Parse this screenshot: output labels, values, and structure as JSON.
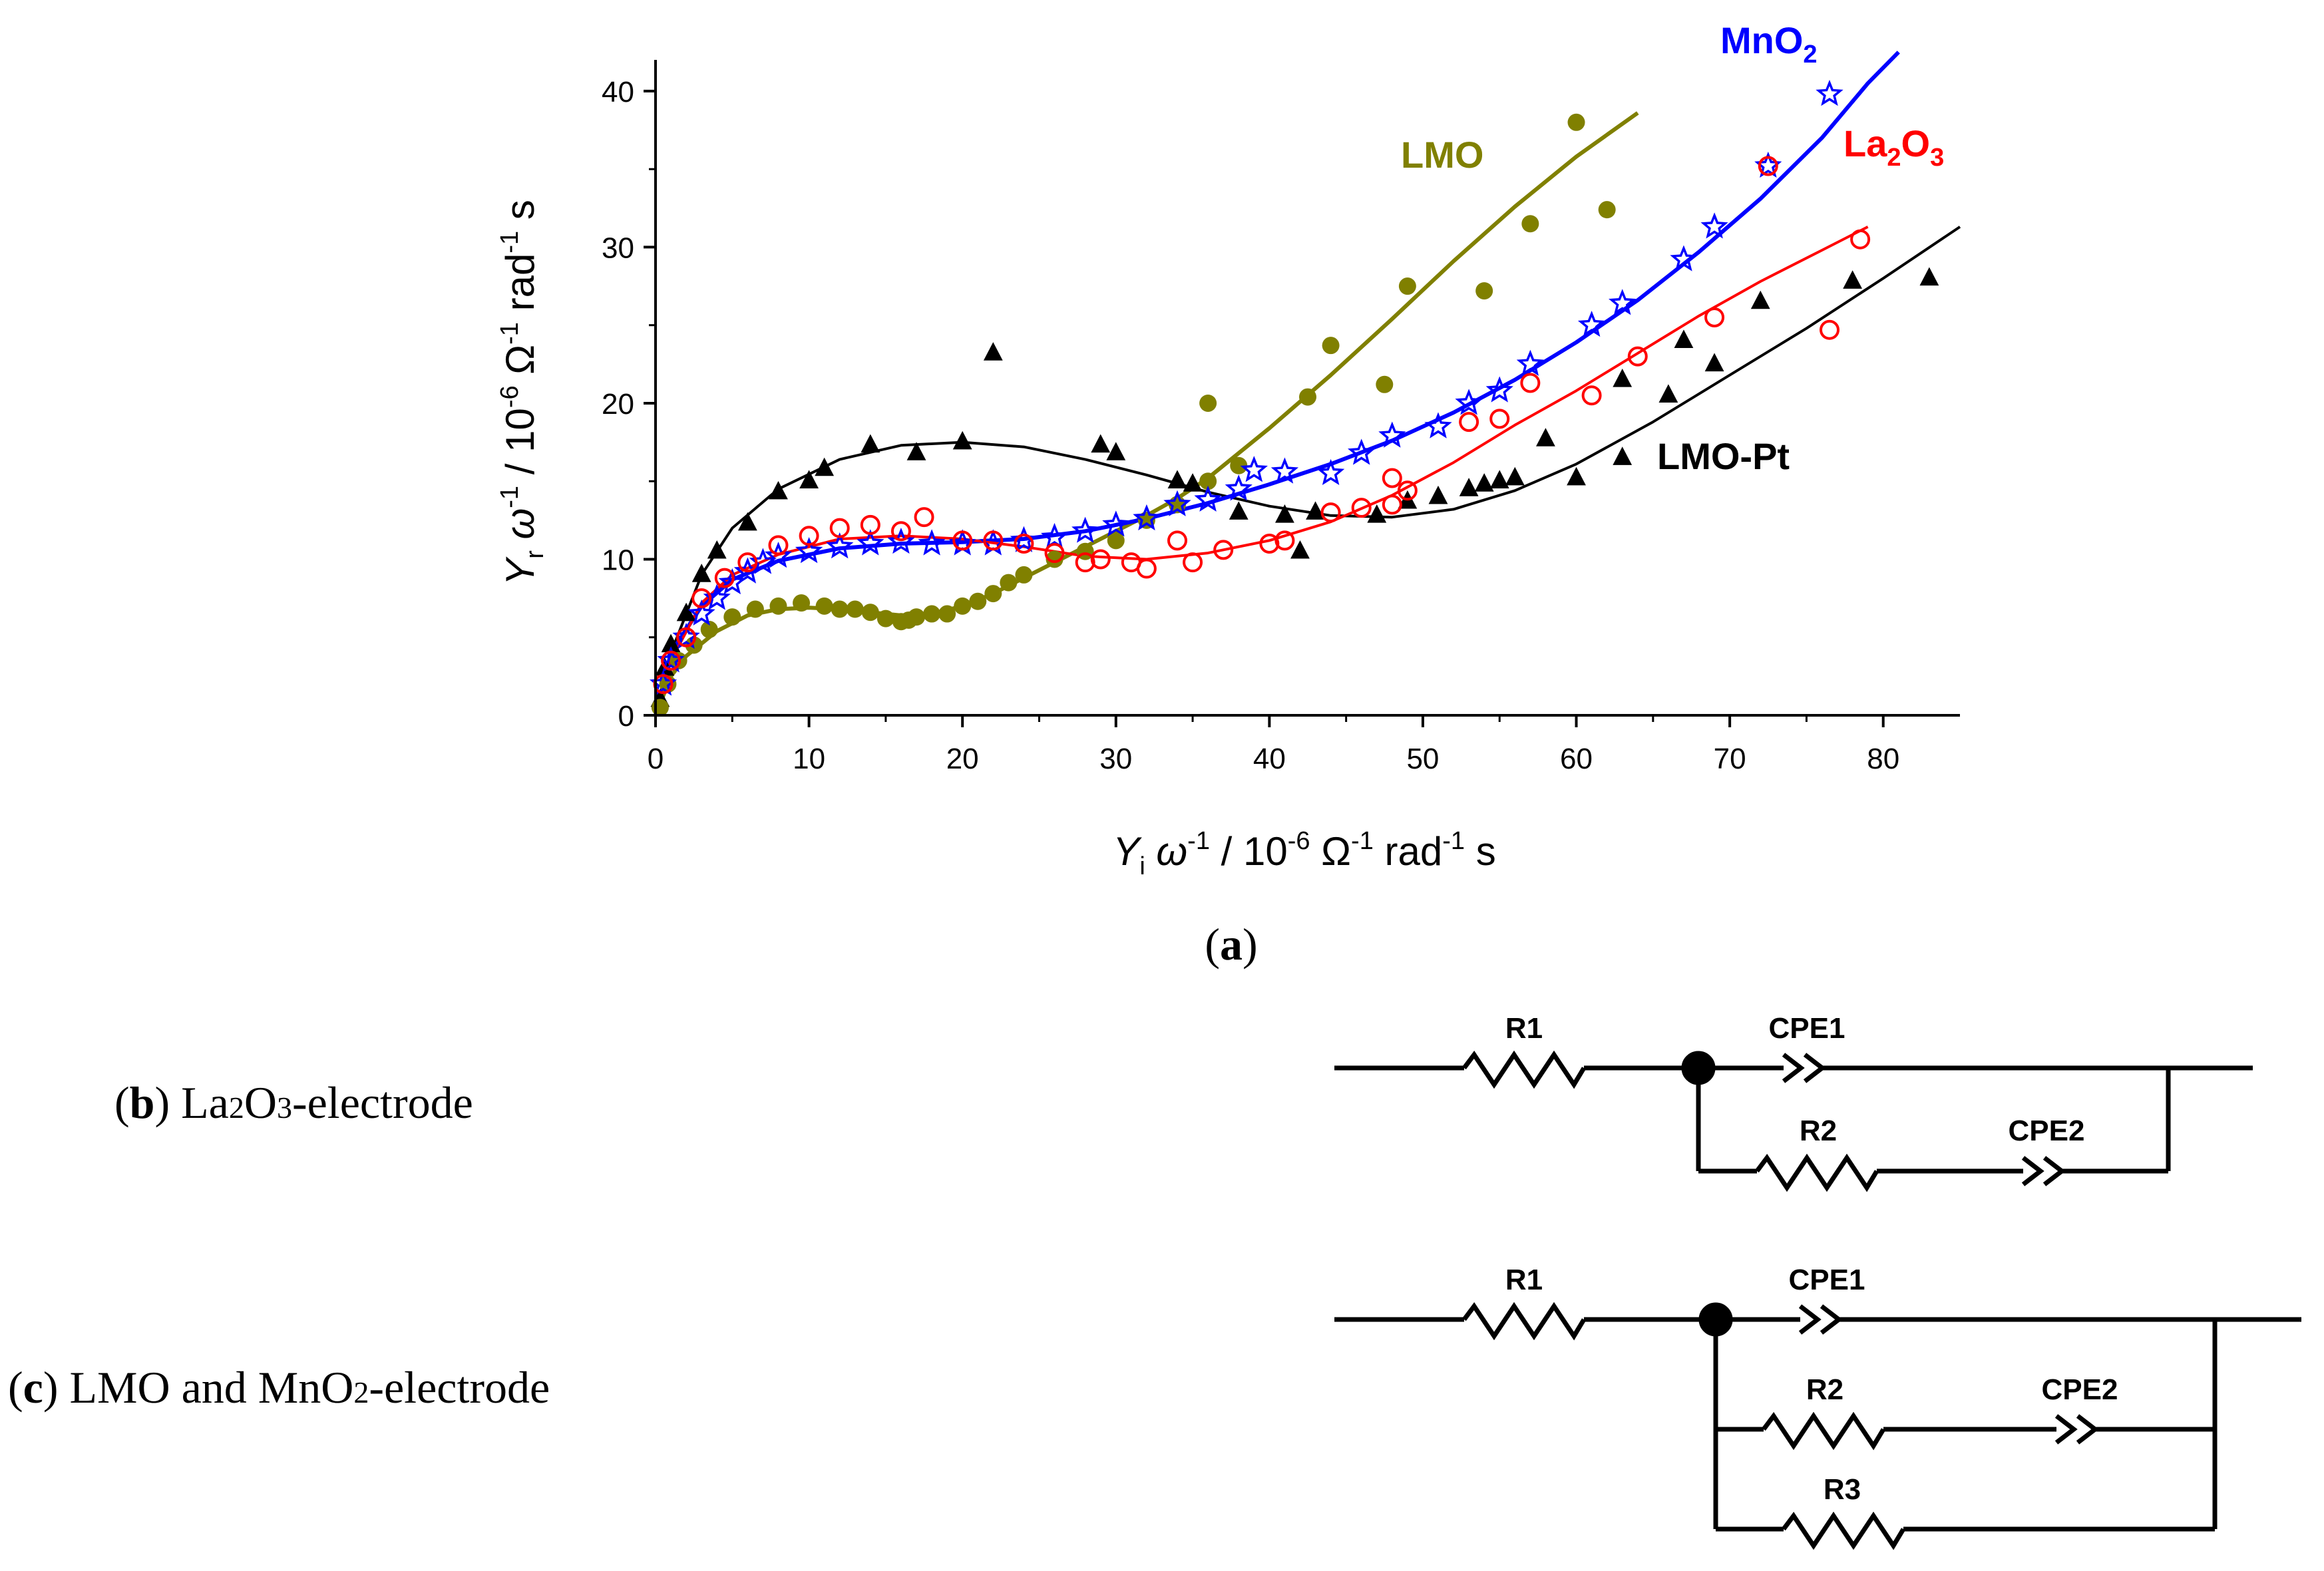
{
  "panel_a": {
    "label": "a"
  },
  "panel_b": {
    "label": "b",
    "text": "La",
    "sub1": "2",
    "text2": "O",
    "sub2": "3",
    "text3": "-electrode"
  },
  "panel_c": {
    "label": "c",
    "text": "LMO and MnO",
    "sub1": "2",
    "text2": "-electrode"
  },
  "circuit_b": {
    "labels": {
      "r1": "R1",
      "cpe1": "CPE1",
      "r2": "R2",
      "cpe2": "CPE2"
    }
  },
  "circuit_c": {
    "labels": {
      "r1": "R1",
      "cpe1": "CPE1",
      "r2": "R2",
      "cpe2": "CPE2",
      "r3": "R3"
    }
  },
  "chart_data": {
    "type": "scatter",
    "title": "",
    "xlabel": {
      "base": "Y",
      "sub": "i",
      "rest1": " ω",
      "sup1": "-1",
      "rest2": " / 10",
      "sup2": "-6",
      "rest3": " Ω",
      "sup3": "-1",
      "rest4": " rad",
      "sup4": "-1",
      "rest5": " s"
    },
    "ylabel": {
      "base": "Y",
      "sub": "r",
      "rest1": " ω",
      "sup1": "-1",
      "rest2": " / 10",
      "sup2": "-6",
      "rest3": " Ω",
      "sup3": "-1",
      "rest4": " rad",
      "sup4": "-1",
      "rest5": " s"
    },
    "xlim": [
      0,
      85
    ],
    "ylim": [
      0,
      42
    ],
    "xticks": [
      0,
      10,
      20,
      30,
      40,
      50,
      60,
      70,
      80
    ],
    "yticks": [
      0,
      10,
      20,
      30,
      40
    ],
    "grid": false,
    "series": [
      {
        "name": "LMO-Pt",
        "label_parts": [
          "LMO-Pt"
        ],
        "color": "#000000",
        "marker": "triangle",
        "points": [
          [
            0.3,
            1
          ],
          [
            0.6,
            3
          ],
          [
            1,
            4.5
          ],
          [
            2,
            6.5
          ],
          [
            3,
            9
          ],
          [
            4,
            10.5
          ],
          [
            6,
            12.3
          ],
          [
            8,
            14.3
          ],
          [
            10,
            15
          ],
          [
            11,
            15.8
          ],
          [
            14,
            17.3
          ],
          [
            17,
            16.8
          ],
          [
            20,
            17.5
          ],
          [
            22,
            23.2
          ],
          [
            29,
            17.3
          ],
          [
            30,
            16.8
          ],
          [
            34,
            15
          ],
          [
            35,
            14.8
          ],
          [
            38,
            13
          ],
          [
            41,
            12.8
          ],
          [
            42,
            10.5
          ],
          [
            43,
            13
          ],
          [
            47,
            12.8
          ],
          [
            49,
            13.7
          ],
          [
            51,
            14
          ],
          [
            53,
            14.5
          ],
          [
            54,
            14.8
          ],
          [
            55,
            15
          ],
          [
            56,
            15.2
          ],
          [
            58,
            17.7
          ],
          [
            60,
            15.2
          ],
          [
            63,
            16.5
          ],
          [
            63,
            21.5
          ],
          [
            66,
            20.5
          ],
          [
            67,
            24
          ],
          [
            69,
            22.5
          ],
          [
            72,
            26.5
          ],
          [
            78,
            27.8
          ],
          [
            83,
            28
          ]
        ],
        "fit": [
          [
            0,
            0
          ],
          [
            1,
            4
          ],
          [
            3,
            9
          ],
          [
            5,
            12
          ],
          [
            8,
            14.5
          ],
          [
            12,
            16.4
          ],
          [
            16,
            17.3
          ],
          [
            20,
            17.5
          ],
          [
            24,
            17.2
          ],
          [
            28,
            16.4
          ],
          [
            32,
            15.4
          ],
          [
            36,
            14.3
          ],
          [
            40,
            13.4
          ],
          [
            44,
            12.8
          ],
          [
            48,
            12.7
          ],
          [
            52,
            13.2
          ],
          [
            56,
            14.4
          ],
          [
            60,
            16.1
          ],
          [
            65,
            18.8
          ],
          [
            70,
            21.8
          ],
          [
            75,
            24.8
          ],
          [
            80,
            28
          ],
          [
            85,
            31.3
          ]
        ]
      },
      {
        "name": "LMO",
        "label_parts": [
          "LMO"
        ],
        "color": "#808000",
        "marker": "circle-filled",
        "points": [
          [
            0.3,
            0.5
          ],
          [
            0.8,
            2
          ],
          [
            1.5,
            3.5
          ],
          [
            2.5,
            4.5
          ],
          [
            3.5,
            5.5
          ],
          [
            5,
            6.3
          ],
          [
            6.5,
            6.8
          ],
          [
            8,
            7
          ],
          [
            9.5,
            7.2
          ],
          [
            11,
            7
          ],
          [
            12,
            6.8
          ],
          [
            13,
            6.8
          ],
          [
            14,
            6.6
          ],
          [
            15,
            6.2
          ],
          [
            16,
            6
          ],
          [
            16.5,
            6.1
          ],
          [
            17,
            6.3
          ],
          [
            18,
            6.5
          ],
          [
            19,
            6.5
          ],
          [
            20,
            7
          ],
          [
            21,
            7.3
          ],
          [
            22,
            7.8
          ],
          [
            23,
            8.5
          ],
          [
            24,
            9
          ],
          [
            26,
            10
          ],
          [
            28,
            10.5
          ],
          [
            30,
            11.2
          ],
          [
            32,
            12.5
          ],
          [
            34,
            13.5
          ],
          [
            36,
            15
          ],
          [
            36,
            20
          ],
          [
            38,
            16
          ],
          [
            42.5,
            20.4
          ],
          [
            44,
            23.7
          ],
          [
            47.5,
            21.2
          ],
          [
            49,
            27.5
          ],
          [
            54,
            27.2
          ],
          [
            57,
            31.5
          ],
          [
            60,
            38
          ],
          [
            62,
            32.4
          ]
        ],
        "fit": [
          [
            0,
            0
          ],
          [
            1,
            2.5
          ],
          [
            2,
            3.8
          ],
          [
            4,
            5.4
          ],
          [
            6,
            6.4
          ],
          [
            8,
            6.8
          ],
          [
            10,
            6.9
          ],
          [
            12,
            6.8
          ],
          [
            14,
            6.6
          ],
          [
            16,
            6.4
          ],
          [
            18,
            6.5
          ],
          [
            20,
            7
          ],
          [
            22,
            7.8
          ],
          [
            24,
            8.8
          ],
          [
            26,
            9.8
          ],
          [
            28,
            10.8
          ],
          [
            30,
            11.8
          ],
          [
            32,
            12.8
          ],
          [
            34,
            13.9
          ],
          [
            36,
            15.2
          ],
          [
            40,
            18.4
          ],
          [
            44,
            21.8
          ],
          [
            48,
            25.4
          ],
          [
            52,
            29.1
          ],
          [
            56,
            32.6
          ],
          [
            60,
            35.8
          ],
          [
            64,
            38.6
          ]
        ]
      },
      {
        "name": "MnO2",
        "label_parts": [
          "MnO",
          "2"
        ],
        "color": "#0000ff",
        "marker": "star-open",
        "points": [
          [
            0.5,
            2
          ],
          [
            1,
            3.5
          ],
          [
            2,
            5
          ],
          [
            3,
            6.5
          ],
          [
            4,
            7.5
          ],
          [
            5,
            8.5
          ],
          [
            6,
            9.2
          ],
          [
            7,
            9.8
          ],
          [
            8,
            10.2
          ],
          [
            10,
            10.5
          ],
          [
            12,
            10.8
          ],
          [
            14,
            11
          ],
          [
            16,
            11.1
          ],
          [
            18,
            11
          ],
          [
            20,
            11
          ],
          [
            22,
            11
          ],
          [
            24,
            11.2
          ],
          [
            26,
            11.4
          ],
          [
            28,
            11.8
          ],
          [
            30,
            12.2
          ],
          [
            32,
            12.6
          ],
          [
            34,
            13.5
          ],
          [
            36,
            13.8
          ],
          [
            38,
            14.5
          ],
          [
            39,
            15.7
          ],
          [
            41,
            15.6
          ],
          [
            44,
            15.5
          ],
          [
            46,
            16.8
          ],
          [
            48,
            17.9
          ],
          [
            51,
            18.5
          ],
          [
            53,
            20
          ],
          [
            55,
            20.8
          ],
          [
            57,
            22.5
          ],
          [
            61,
            25
          ],
          [
            63,
            26.4
          ],
          [
            67,
            29.2
          ],
          [
            69,
            31.3
          ],
          [
            72.5,
            35.2
          ],
          [
            76.5,
            39.8
          ]
        ],
        "fit": [
          [
            0,
            0
          ],
          [
            1,
            4
          ],
          [
            3,
            7
          ],
          [
            5,
            8.7
          ],
          [
            8,
            9.9
          ],
          [
            12,
            10.7
          ],
          [
            16,
            11
          ],
          [
            20,
            11.1
          ],
          [
            24,
            11.3
          ],
          [
            28,
            11.8
          ],
          [
            32,
            12.6
          ],
          [
            36,
            13.6
          ],
          [
            40,
            14.8
          ],
          [
            44,
            16.1
          ],
          [
            48,
            17.6
          ],
          [
            52,
            19.4
          ],
          [
            56,
            21.5
          ],
          [
            60,
            23.9
          ],
          [
            64,
            26.6
          ],
          [
            68,
            29.7
          ],
          [
            72,
            33.1
          ],
          [
            76,
            37
          ],
          [
            79,
            40.5
          ],
          [
            81,
            42.5
          ]
        ]
      },
      {
        "name": "La2O3",
        "label_parts": [
          "La",
          "2",
          "O",
          "3"
        ],
        "color": "#ff0000",
        "marker": "circle-open",
        "points": [
          [
            0.5,
            2
          ],
          [
            1,
            3.5
          ],
          [
            2,
            5
          ],
          [
            3,
            7.5
          ],
          [
            4.5,
            8.8
          ],
          [
            6,
            9.8
          ],
          [
            8,
            10.9
          ],
          [
            10,
            11.5
          ],
          [
            12,
            12
          ],
          [
            14,
            12.2
          ],
          [
            16,
            11.8
          ],
          [
            17.5,
            12.7
          ],
          [
            20,
            11.2
          ],
          [
            22,
            11.2
          ],
          [
            24,
            11
          ],
          [
            26,
            10.4
          ],
          [
            28,
            9.8
          ],
          [
            29,
            10
          ],
          [
            31,
            9.8
          ],
          [
            32,
            9.4
          ],
          [
            34,
            11.2
          ],
          [
            35,
            9.8
          ],
          [
            37,
            10.6
          ],
          [
            40,
            11
          ],
          [
            41,
            11.2
          ],
          [
            44,
            13
          ],
          [
            46,
            13.3
          ],
          [
            48,
            13.5
          ],
          [
            48,
            15.2
          ],
          [
            49,
            14.4
          ],
          [
            53,
            18.8
          ],
          [
            55,
            19
          ],
          [
            57,
            21.3
          ],
          [
            61,
            20.5
          ],
          [
            64,
            23
          ],
          [
            69,
            25.5
          ],
          [
            72.5,
            35.2
          ],
          [
            76.5,
            24.7
          ],
          [
            78.5,
            30.5
          ]
        ],
        "fit": [
          [
            0,
            0
          ],
          [
            1,
            3.5
          ],
          [
            3,
            7.2
          ],
          [
            5,
            9
          ],
          [
            8,
            10.3
          ],
          [
            12,
            11.3
          ],
          [
            16,
            11.5
          ],
          [
            20,
            11.3
          ],
          [
            24,
            10.8
          ],
          [
            28,
            10.2
          ],
          [
            32,
            10
          ],
          [
            36,
            10.4
          ],
          [
            40,
            11.2
          ],
          [
            44,
            12.4
          ],
          [
            48,
            14.1
          ],
          [
            52,
            16.2
          ],
          [
            56,
            18.6
          ],
          [
            60,
            20.8
          ],
          [
            64,
            23.2
          ],
          [
            68,
            25.6
          ],
          [
            72,
            27.8
          ],
          [
            76,
            29.8
          ],
          [
            79,
            31.3
          ]
        ]
      }
    ]
  }
}
